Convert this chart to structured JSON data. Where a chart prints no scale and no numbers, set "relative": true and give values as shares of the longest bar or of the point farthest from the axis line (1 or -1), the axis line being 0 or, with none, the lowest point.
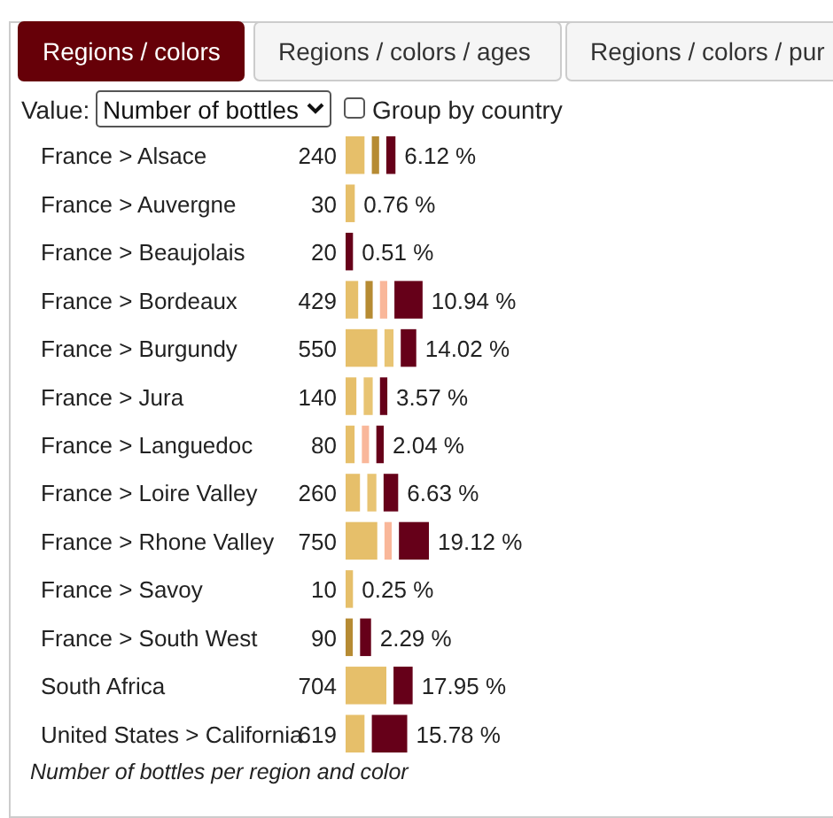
{
  "chart_data": {
    "type": "bar",
    "orientation": "horizontal",
    "stacked": true,
    "relative": true,
    "categories": [
      "France > Alsace",
      "France > Auvergne",
      "France > Beaujolais",
      "France > Bordeaux",
      "France > Burgundy",
      "France > Jura",
      "France > Languedoc",
      "France > Loire Valley",
      "France > Rhone Valley",
      "France > Savoy",
      "France > South West",
      "South Africa",
      "United States > California"
    ],
    "series": [
      {
        "color": "#e6bf6a",
        "values": [
          0.29,
          0.18,
          null,
          0.22,
          0.43,
          0.2,
          0.18,
          0.24,
          0.43,
          0.16,
          null,
          0.53,
          0.29
        ]
      },
      {
        "color": "#b68b33",
        "values": [
          0.16,
          null,
          null,
          0.16,
          null,
          null,
          null,
          null,
          null,
          null,
          0.16,
          null,
          null
        ]
      },
      {
        "color": "#e8c473",
        "values": [
          null,
          null,
          null,
          null,
          0.18,
          0.18,
          null,
          0.18,
          null,
          null,
          null,
          null,
          null
        ]
      },
      {
        "color": "#f9b79a",
        "values": [
          null,
          null,
          null,
          0.16,
          null,
          null,
          0.16,
          null,
          0.16,
          null,
          null,
          null,
          null
        ]
      },
      {
        "color": "#660019",
        "values": [
          0.18,
          null,
          0.16,
          0.39,
          0.25,
          0.16,
          0.16,
          0.24,
          0.41,
          null,
          0.2,
          0.29,
          0.47
        ]
      }
    ],
    "annotations": [
      "240",
      "30",
      "20",
      "429",
      "550",
      "140",
      "80",
      "260",
      "750",
      "10",
      "90",
      "704",
      "619",
      "6.12 %",
      "0.76 %",
      "0.51 %",
      "10.94 %",
      "14.02 %",
      "3.57 %",
      "2.04 %",
      "6.63 %",
      "19.12 %",
      "0.25 %",
      "2.29 %",
      "17.95 %",
      "15.78 %",
      "Regions / colors",
      "Regions / colors / ages",
      "Regions / colors / pur",
      "Value:",
      "Number of bottles",
      "Group by country",
      "Number of bottles per region and color"
    ]
  }
}
